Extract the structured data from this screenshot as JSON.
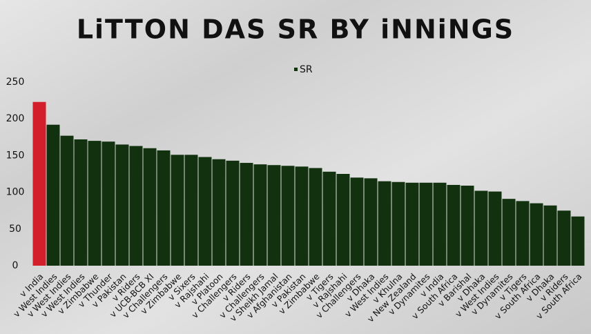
{
  "chart_data": {
    "type": "bar",
    "title": "LiTTON DAS SR BY iNNiNGS",
    "categories": [
      "v India",
      "v West Indies",
      "v West Indies",
      "v West Indies",
      "v Zimbabwe",
      "v Thunder",
      "v Pakistan",
      "v Riders",
      "v UCB-BCB XI",
      "v Challengers",
      "v Zimbabwe",
      "v Sixers",
      "v Rajshahi",
      "v Platoon",
      "v Challengers",
      "v Riders",
      "v Challengers",
      "v Sheikh Jamal",
      "v Afghanistan",
      "v Pakistan",
      "v Zimbabwe",
      "v Tigers",
      "v Rajshahi",
      "v Challengers",
      "v Dhaka",
      "v West Indies",
      "v Khulna",
      "v New Zealand",
      "v Dynamites",
      "v India",
      "v South Africa",
      "v Barishal",
      "v Dhaka",
      "v West Indies",
      "v Dynamites",
      "v Tigers",
      "v South Africa",
      "v Dhaka",
      "v Riders",
      "v South Africa"
    ],
    "series": [
      {
        "name": "SR",
        "color": "#12320f",
        "values": [
          223,
          192,
          177,
          172,
          170,
          169,
          165,
          163,
          160,
          157,
          151,
          151,
          148,
          145,
          143,
          140,
          138,
          137,
          136,
          135,
          133,
          128,
          125,
          120,
          119,
          115,
          114,
          113,
          113,
          113,
          110,
          109,
          102,
          101,
          91,
          88,
          85,
          82,
          75,
          67
        ],
        "colors": [
          "#d21f2b",
          "#12320f",
          "#12320f",
          "#12320f",
          "#12320f",
          "#12320f",
          "#12320f",
          "#12320f",
          "#12320f",
          "#12320f",
          "#12320f",
          "#12320f",
          "#12320f",
          "#12320f",
          "#12320f",
          "#12320f",
          "#12320f",
          "#12320f",
          "#12320f",
          "#12320f",
          "#12320f",
          "#12320f",
          "#12320f",
          "#12320f",
          "#12320f",
          "#12320f",
          "#12320f",
          "#12320f",
          "#12320f",
          "#12320f",
          "#12320f",
          "#12320f",
          "#12320f",
          "#12320f",
          "#12320f",
          "#12320f",
          "#12320f",
          "#12320f",
          "#12320f",
          "#12320f"
        ]
      }
    ],
    "ylim": [
      0,
      250
    ],
    "yticks": [
      0,
      50,
      100,
      150,
      200,
      250
    ],
    "grid": false,
    "legend": "top"
  }
}
